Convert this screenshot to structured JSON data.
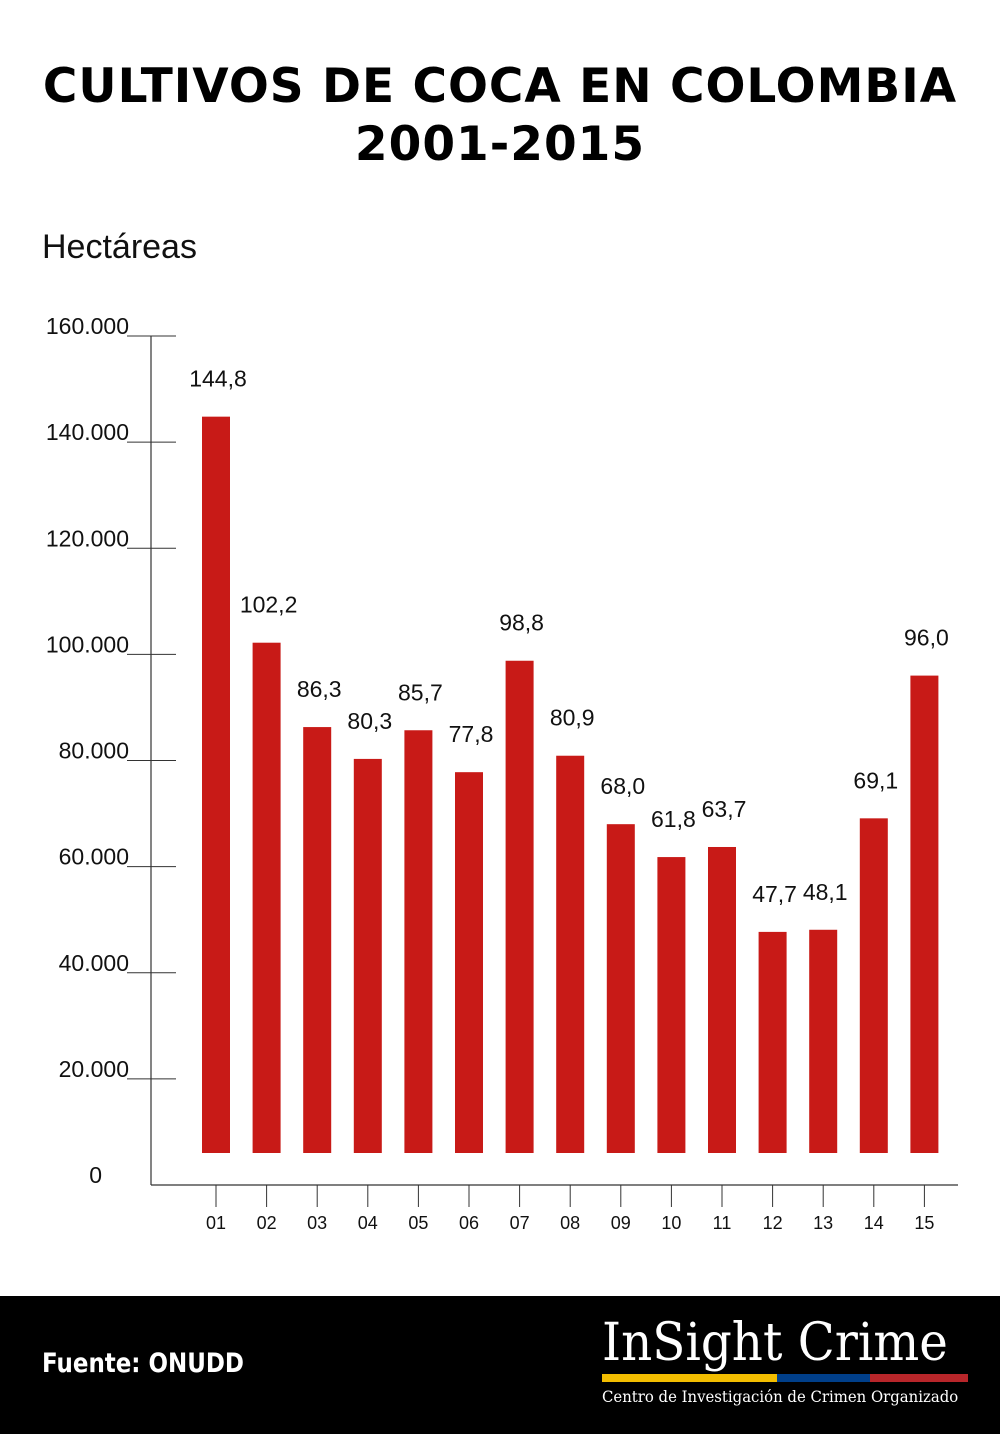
{
  "colors": {
    "bar": "#c81a17",
    "axis": "#333333",
    "footer_bg": "#000000",
    "stripe_yellow": "#f2bd00",
    "stripe_blue": "#003f8a",
    "stripe_red": "#b8262a"
  },
  "chart_data": {
    "type": "bar",
    "title": "CULTIVOS DE COCA EN COLOMBIA",
    "subtitle": "2001-2015",
    "ylabel": "Hectáreas",
    "xlabel": "",
    "categories": [
      "01",
      "02",
      "03",
      "04",
      "05",
      "06",
      "07",
      "08",
      "09",
      "10",
      "11",
      "12",
      "13",
      "14",
      "15"
    ],
    "values": [
      144800,
      102200,
      86300,
      80300,
      85700,
      77800,
      98800,
      80900,
      68000,
      61800,
      63700,
      47700,
      48100,
      69100,
      96000
    ],
    "data_labels": [
      "144,8",
      "102,2",
      "86,3",
      "80,3",
      "85,7",
      "77,8",
      "98,8",
      "80,9",
      "68,0",
      "61,8",
      "63,7",
      "47,7",
      "48,1",
      "69,1",
      "96,0"
    ],
    "yticks": [
      0,
      20000,
      40000,
      60000,
      80000,
      100000,
      120000,
      140000,
      160000
    ],
    "ytick_labels": [
      "0",
      "20.000",
      "40.000",
      "60.000",
      "80.000",
      "100.000",
      "120.000",
      "140.000",
      "160.000"
    ],
    "ylim": [
      0,
      160000
    ],
    "grid": false,
    "legend": "none"
  },
  "footer": {
    "source": "Fuente: ONUDD",
    "logo_name": "InSight Crime",
    "logo_subtitle": "Centro de Investigación de Crimen Organizado"
  }
}
